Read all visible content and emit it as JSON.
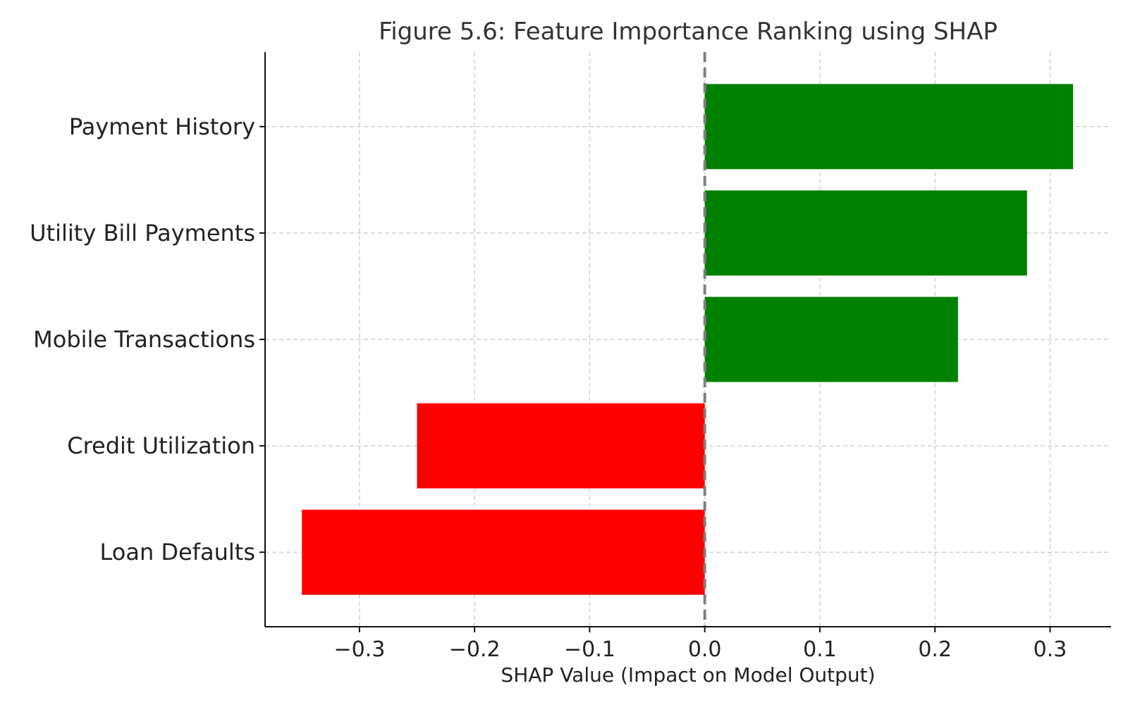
{
  "chart_data": {
    "type": "bar",
    "orientation": "horizontal",
    "title": "Figure 5.6: Feature Importance Ranking using SHAP",
    "xlabel": "SHAP Value (Impact on Model Output)",
    "ylabel": "",
    "categories": [
      "Payment History",
      "Utility Bill Payments",
      "Mobile Transactions",
      "Credit Utilization",
      "Loan Defaults"
    ],
    "values": [
      0.32,
      0.28,
      0.22,
      -0.25,
      -0.35
    ],
    "colors": [
      "#008000",
      "#008000",
      "#008000",
      "#ff0000",
      "#ff0000"
    ],
    "xlim": [
      -0.382,
      0.353
    ],
    "xticks": [
      -0.3,
      -0.2,
      -0.1,
      0.0,
      0.1,
      0.2,
      0.3
    ],
    "xtick_labels": [
      "−0.3",
      "−0.2",
      "−0.1",
      "0.0",
      "0.1",
      "0.2",
      "0.3"
    ],
    "grid": true,
    "reference_line": {
      "value": 0.0,
      "style": "dashed",
      "color": "#7f7f7f"
    }
  }
}
